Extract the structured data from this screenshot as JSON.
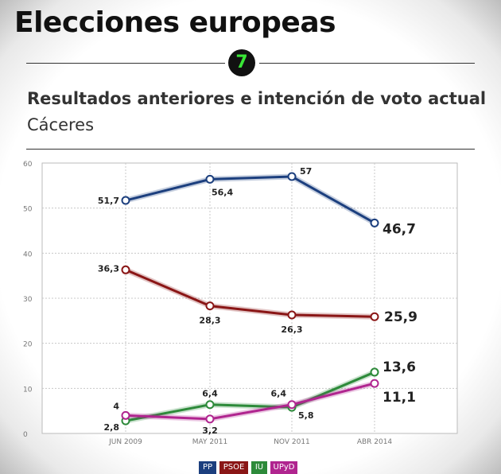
{
  "header": {
    "title": "Elecciones europeas",
    "badge": "7",
    "subtitle": "Resultados anteriores e intención de voto actual",
    "region": "Cáceres"
  },
  "chart_data": {
    "type": "line",
    "x": [
      "JUN 2009",
      "MAY 2011",
      "NOV 2011",
      "ABR 2014"
    ],
    "ylim": [
      0,
      60
    ],
    "yticks": [
      0,
      10,
      20,
      30,
      40,
      50,
      60
    ],
    "grid": true,
    "series": [
      {
        "name": "PP",
        "color": "#1c3f7e",
        "values": [
          51.7,
          56.4,
          57,
          46.7
        ],
        "labels": [
          "51,7",
          "56,4",
          "57",
          "46,7"
        ]
      },
      {
        "name": "PSOE",
        "color": "#8a1616",
        "values": [
          36.3,
          28.3,
          26.3,
          25.9
        ],
        "labels": [
          "36,3",
          "28,3",
          "26,3",
          "25,9"
        ]
      },
      {
        "name": "IU",
        "color": "#2d8a3a",
        "values": [
          2.8,
          6.4,
          5.8,
          13.6
        ],
        "labels": [
          "2,8",
          "6,4",
          "5,8",
          "13,6"
        ]
      },
      {
        "name": "UPyD",
        "color": "#b0258f",
        "values": [
          4,
          3.2,
          6.4,
          11.1
        ],
        "labels": [
          "4",
          "3,2",
          "6,4",
          "11,1"
        ]
      }
    ],
    "legend": [
      "PP",
      "PSOE",
      "IU",
      "UPyD"
    ],
    "legend_position": "bottom-center"
  }
}
